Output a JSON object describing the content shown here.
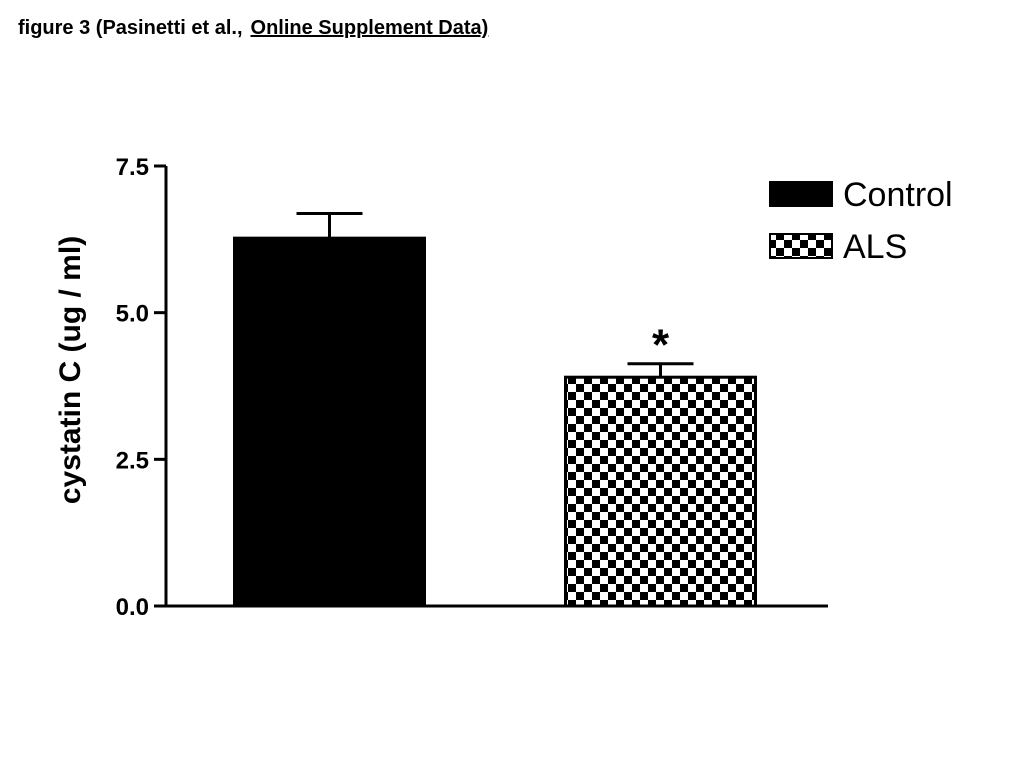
{
  "caption": {
    "prefix": "figure 3 (Pasinetti et al.,",
    "link": "Online Supplement Data)"
  },
  "chart_data": {
    "type": "bar",
    "categories": [
      "Control",
      "ALS"
    ],
    "values": [
      6.27,
      3.9
    ],
    "errors": [
      0.42,
      0.23
    ],
    "ylabel": "cystatin C (ug / ml)",
    "ylim": [
      0,
      7.5
    ],
    "yticks": [
      0,
      2.5,
      5,
      7.5
    ],
    "ytick_labels": [
      "0.0",
      "2.5",
      "5.0",
      "7.5"
    ],
    "grid": false,
    "legend": {
      "placement": "top-right",
      "entries": [
        "Control",
        "ALS"
      ]
    },
    "fills": [
      "#000000",
      "checker"
    ],
    "annotations": [
      {
        "category": "ALS",
        "text": "*"
      }
    ]
  }
}
